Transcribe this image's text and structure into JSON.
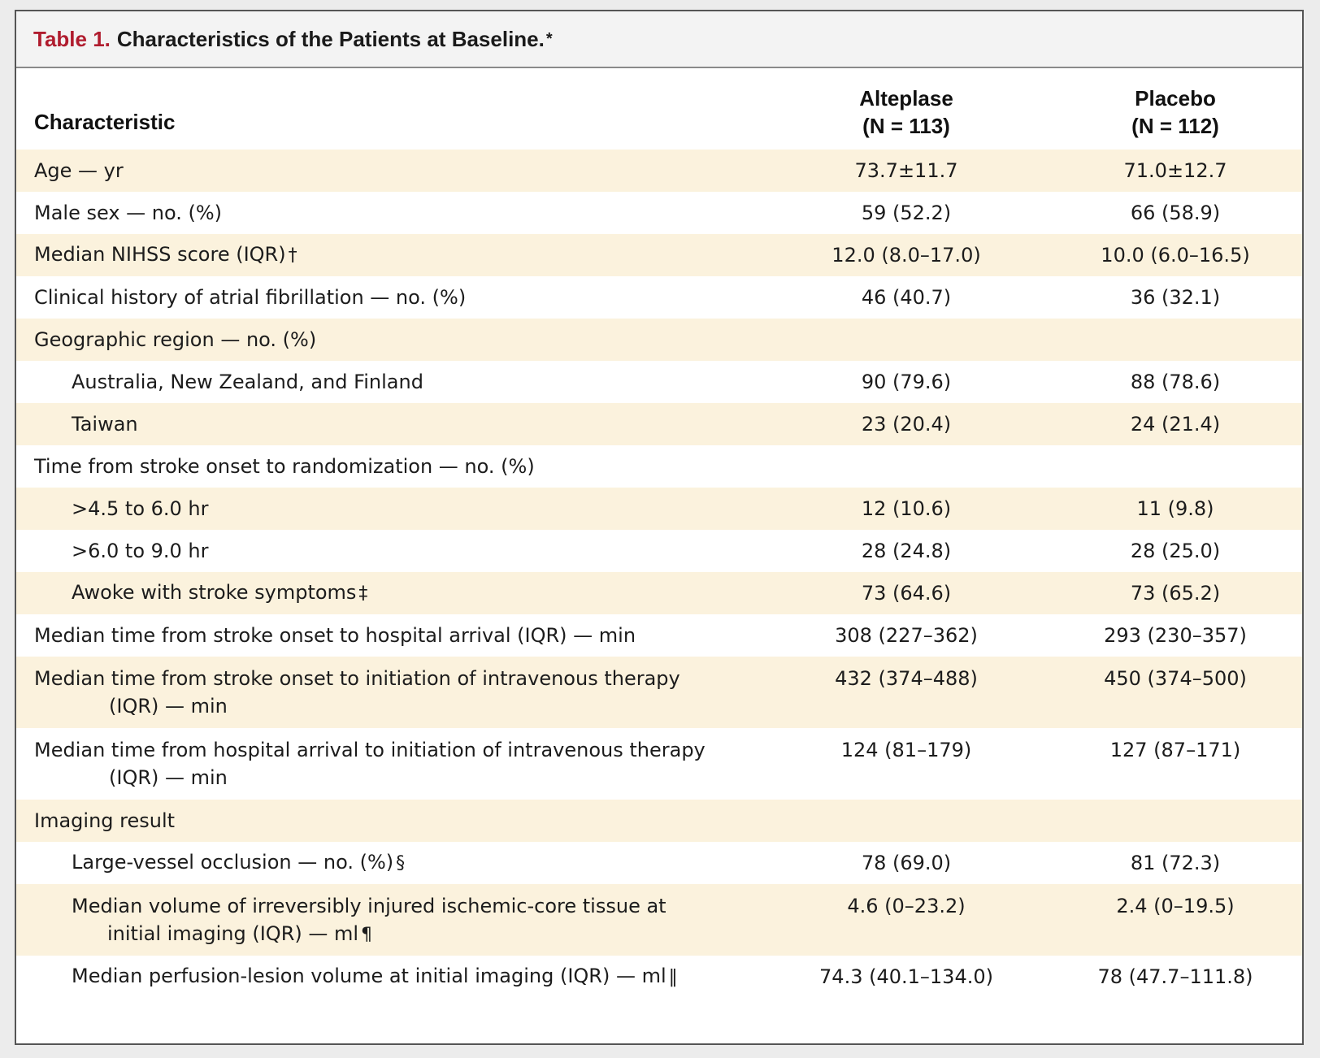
{
  "caption": {
    "label": "Table 1.",
    "title": "Characteristics of the Patients at Baseline.",
    "note": "*"
  },
  "header": {
    "characteristic": "Characteristic",
    "alteplase_name": "Alteplase",
    "alteplase_n": "(N = 113)",
    "placebo_name": "Placebo",
    "placebo_n": "(N = 112)"
  },
  "rows": [
    {
      "label": "Age — yr",
      "alteplase": "73.7±11.7",
      "placebo": "71.0±12.7"
    },
    {
      "label": "Male sex — no. (%)",
      "alteplase": "59 (52.2)",
      "placebo": "66 (58.9)"
    },
    {
      "label": "Median NIHSS score (IQR)",
      "symbol": "†",
      "alteplase": "12.0 (8.0–17.0)",
      "placebo": "10.0 (6.0–16.5)"
    },
    {
      "label": "Clinical history of atrial fibrillation — no. (%)",
      "alteplase": "46 (40.7)",
      "placebo": "36 (32.1)"
    },
    {
      "label": "Geographic region — no. (%)",
      "alteplase": "",
      "placebo": ""
    },
    {
      "label": "Australia, New Zealand, and Finland",
      "alteplase": "90 (79.6)",
      "placebo": "88 (78.6)"
    },
    {
      "label": "Taiwan",
      "alteplase": "23 (20.4)",
      "placebo": "24 (21.4)"
    },
    {
      "label": "Time from stroke onset to randomization — no. (%)",
      "alteplase": "",
      "placebo": ""
    },
    {
      "label": ">4.5 to 6.0 hr",
      "alteplase": "12 (10.6)",
      "placebo": "11 (9.8)"
    },
    {
      "label": ">6.0 to 9.0 hr",
      "alteplase": "28 (24.8)",
      "placebo": "28 (25.0)"
    },
    {
      "label": "Awoke with stroke symptoms",
      "symbol": "‡",
      "alteplase": "73 (64.6)",
      "placebo": "73 (65.2)"
    },
    {
      "label": "Median time from stroke onset to hospital arrival (IQR) — min",
      "alteplase": "308 (227–362)",
      "placebo": "293 (230–357)"
    },
    {
      "label": "Median time from stroke onset to initiation of intravenous therapy",
      "label_cont": "(IQR) — min",
      "alteplase": "432 (374–488)",
      "placebo": "450 (374–500)"
    },
    {
      "label": "Median time from hospital arrival to initiation of intravenous therapy",
      "label_cont": "(IQR) — min",
      "alteplase": "124 (81–179)",
      "placebo": "127 (87–171)"
    },
    {
      "label": "Imaging result",
      "alteplase": "",
      "placebo": ""
    },
    {
      "label": "Large-vessel occlusion — no. (%)",
      "symbol": "§",
      "alteplase": "78 (69.0)",
      "placebo": "81 (72.3)"
    },
    {
      "label": "Median volume of irreversibly injured ischemic-core tissue at",
      "label_cont": "initial imaging (IQR) — ml",
      "symbol": "¶",
      "alteplase": "4.6 (0–23.2)",
      "placebo": "2.4 (0–19.5)"
    },
    {
      "label": "Median perfusion-lesion volume at initial imaging (IQR) — ml",
      "symbol": "‖",
      "alteplase": "74.3 (40.1–134.0)",
      "placebo": "78 (47.7–111.8)"
    }
  ]
}
